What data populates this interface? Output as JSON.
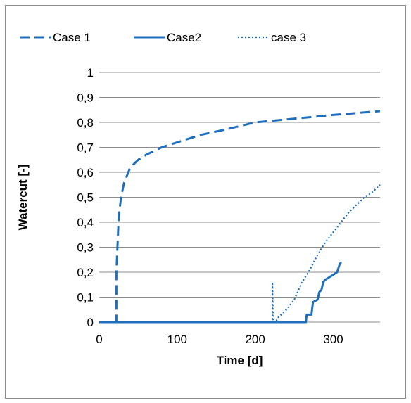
{
  "chart_data": {
    "type": "line",
    "title": "",
    "xlabel": "Time [d]",
    "ylabel": "Watercut [-]",
    "xlim": [
      0,
      360
    ],
    "ylim": [
      0,
      1
    ],
    "x_ticks": [
      "0",
      "100",
      "200",
      "300"
    ],
    "y_ticks": [
      "0",
      "0,1",
      "0,2",
      "0,3",
      "0,4",
      "0,5",
      "0,6",
      "0,7",
      "0,8",
      "0,9",
      "1"
    ],
    "grid": "horizontal",
    "legend_position": "top",
    "color": "#1f6fbf",
    "series": [
      {
        "name": "Case 1",
        "style": "dashed",
        "x": [
          0,
          22,
          22,
          25,
          28,
          32,
          40,
          50,
          60,
          80,
          100,
          130,
          160,
          200,
          250,
          300,
          360
        ],
        "y": [
          0,
          0,
          0.2,
          0.42,
          0.5,
          0.56,
          0.62,
          0.65,
          0.67,
          0.7,
          0.72,
          0.75,
          0.77,
          0.8,
          0.815,
          0.83,
          0.845
        ]
      },
      {
        "name": "Case2",
        "style": "solid",
        "x": [
          0,
          265,
          266,
          272,
          274,
          280,
          282,
          285,
          287,
          290,
          295,
          300,
          305,
          308,
          310
        ],
        "y": [
          0,
          0,
          0.03,
          0.03,
          0.08,
          0.09,
          0.12,
          0.13,
          0.16,
          0.17,
          0.18,
          0.19,
          0.2,
          0.23,
          0.24
        ]
      },
      {
        "name": "case 3",
        "style": "dotted",
        "x": [
          0,
          222,
          222,
          223,
          226,
          230,
          240,
          250,
          260,
          270,
          280,
          290,
          300,
          310,
          320,
          330,
          340,
          350,
          360
        ],
        "y": [
          0,
          0,
          0.16,
          0.0,
          0.0,
          0.02,
          0.05,
          0.09,
          0.16,
          0.21,
          0.27,
          0.32,
          0.36,
          0.4,
          0.44,
          0.47,
          0.5,
          0.52,
          0.55
        ]
      }
    ]
  }
}
